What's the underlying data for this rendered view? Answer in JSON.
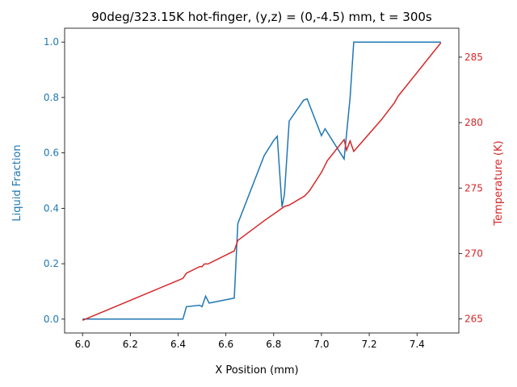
{
  "chart_data": {
    "type": "line",
    "title": "90deg/323.15K hot-finger, (y,z) = (0,-4.5) mm, t = 300s",
    "xlabel": "X Position (mm)",
    "ylabel_left": "Liquid Fraction",
    "ylabel_right": "Temperature (K)",
    "xlim": [
      5.925,
      7.575
    ],
    "ylim_left": [
      -0.05,
      1.05
    ],
    "ylim_right": [
      263.93,
      287.21
    ],
    "xticks": [
      "6.0",
      "6.2",
      "6.4",
      "6.6",
      "6.8",
      "7.0",
      "7.2",
      "7.4"
    ],
    "yticks_left": [
      "0.0",
      "0.2",
      "0.4",
      "0.6",
      "0.8",
      "1.0"
    ],
    "yticks_right": [
      "265",
      "270",
      "275",
      "280",
      "285"
    ],
    "grid": false,
    "series": [
      {
        "name": "Liquid Fraction",
        "axis": "left",
        "color": "#1f77b4",
        "x": [
          6.0,
          6.42,
          6.435,
          6.49,
          6.5,
          6.515,
          6.53,
          6.635,
          6.65,
          6.76,
          6.8,
          6.815,
          6.835,
          6.845,
          6.865,
          6.925,
          6.94,
          7.0,
          7.015,
          7.095,
          7.12,
          7.135,
          7.5
        ],
        "y": [
          0.0,
          0.0,
          0.045,
          0.05,
          0.045,
          0.083,
          0.058,
          0.076,
          0.345,
          0.59,
          0.645,
          0.66,
          0.405,
          0.45,
          0.715,
          0.79,
          0.795,
          0.662,
          0.687,
          0.578,
          0.8,
          1.0,
          1.0
        ]
      },
      {
        "name": "Temperature",
        "axis": "right",
        "color": "#d62728",
        "x": [
          6.0,
          6.42,
          6.435,
          6.49,
          6.5,
          6.51,
          6.525,
          6.635,
          6.65,
          6.76,
          6.83,
          6.845,
          6.865,
          6.93,
          6.95,
          7.0,
          7.025,
          7.095,
          7.105,
          7.12,
          7.135,
          7.25,
          7.305,
          7.32,
          7.5
        ],
        "y": [
          264.9,
          268.1,
          268.5,
          269.0,
          269.0,
          269.2,
          269.2,
          270.2,
          271.0,
          272.5,
          273.4,
          273.6,
          273.7,
          274.4,
          274.8,
          276.2,
          277.1,
          278.7,
          277.9,
          278.6,
          277.8,
          280.2,
          281.5,
          282.0,
          286.1
        ]
      }
    ]
  }
}
